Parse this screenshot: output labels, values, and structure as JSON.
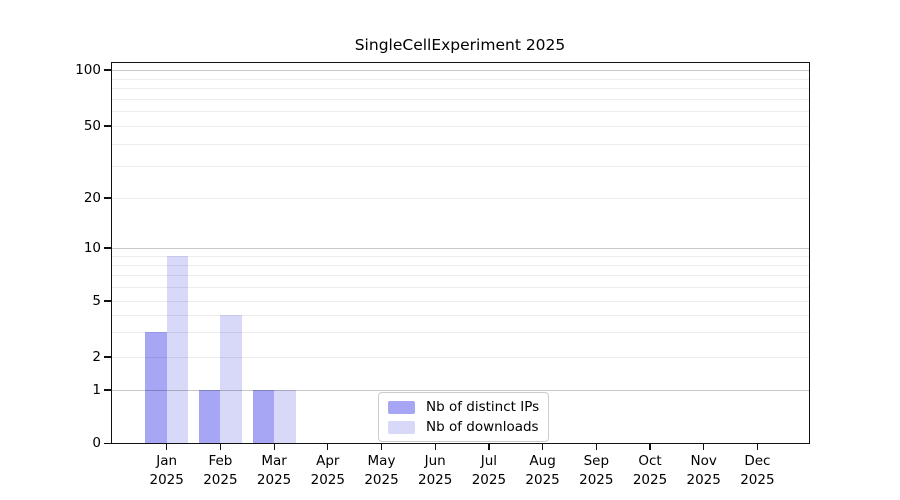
{
  "chart_data": {
    "type": "bar",
    "title": "SingleCellExperiment 2025",
    "months": [
      "Jan",
      "Feb",
      "Mar",
      "Apr",
      "May",
      "Jun",
      "Jul",
      "Aug",
      "Sep",
      "Oct",
      "Nov",
      "Dec"
    ],
    "year_label": "2025",
    "series": [
      {
        "name": "Nb of distinct IPs",
        "color": "#a6a6f4",
        "values": [
          3,
          1,
          1,
          0,
          0,
          0,
          0,
          0,
          0,
          0,
          0,
          0
        ]
      },
      {
        "name": "Nb of downloads",
        "color": "#d8d8f9",
        "values": [
          9,
          4,
          1,
          0,
          0,
          0,
          0,
          0,
          0,
          0,
          0,
          0
        ]
      }
    ],
    "y_axis": {
      "scale": "log-like",
      "ylim": [
        0,
        100
      ],
      "ticks": [
        0,
        1,
        2,
        5,
        10,
        20,
        50,
        100
      ],
      "major_gridlines": [
        1,
        10,
        100
      ],
      "minor_gridlines": [
        2,
        3,
        4,
        5,
        6,
        7,
        8,
        9,
        20,
        30,
        40,
        50,
        60,
        70,
        80,
        90
      ]
    },
    "legend_position": "lower center",
    "grid": true,
    "background": "#ffffff"
  }
}
